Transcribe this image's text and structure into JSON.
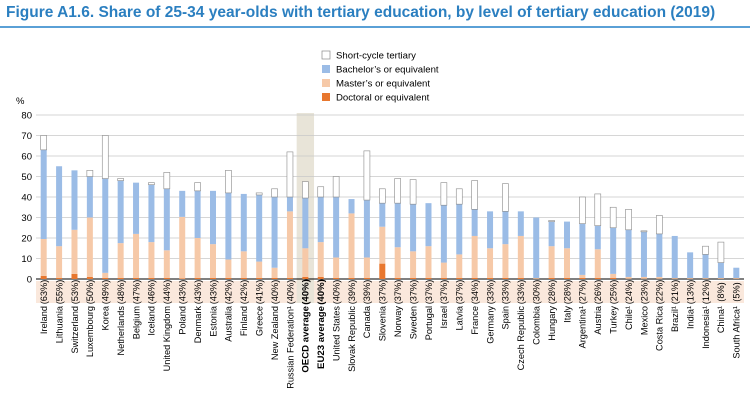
{
  "title": "Figure A1.6. Share of 25-34 year-olds with tertiary education, by level of tertiary education (2019)",
  "chart_data": {
    "type": "bar",
    "stacked": true,
    "ylabel": "%",
    "ylim": [
      0,
      80
    ],
    "yticks": [
      0,
      10,
      20,
      30,
      40,
      50,
      60,
      70,
      80
    ],
    "grid": true,
    "legend_position": "top-right",
    "series_colors": {
      "doctoral": "#e8772e",
      "master": "#f6c9a8",
      "bachelor": "#9bbce6",
      "short": "#ffffff"
    },
    "highlight_color": "#e8e4d8",
    "label_band_color": "#fae8dc",
    "legend": [
      {
        "key": "short",
        "label": "Short-cycle tertiary"
      },
      {
        "key": "bachelor",
        "label": "Bachelor’s or equivalent"
      },
      {
        "key": "master",
        "label": "Master’s or equivalent"
      },
      {
        "key": "doctoral",
        "label": "Doctoral or equivalent"
      }
    ],
    "categories": [
      {
        "name": "Ireland",
        "label": "(63%)",
        "doctoral": 1.5,
        "master": 18,
        "bachelor": 43.5,
        "short": 7
      },
      {
        "name": "Lithuania",
        "label": "(55%)",
        "doctoral": 0.5,
        "master": 15.5,
        "bachelor": 39,
        "short": 0
      },
      {
        "name": "Switzerland",
        "label": "(53%)",
        "doctoral": 2.5,
        "master": 21.5,
        "bachelor": 29,
        "short": 0
      },
      {
        "name": "Luxembourg",
        "label": "(50%)",
        "doctoral": 1,
        "master": 29,
        "bachelor": 20,
        "short": 3
      },
      {
        "name": "Korea",
        "label": "(49%)",
        "doctoral": 0.5,
        "master": 2.5,
        "bachelor": 46,
        "short": 21
      },
      {
        "name": "Netherlands",
        "label": "(48%)",
        "doctoral": 0.5,
        "master": 17,
        "bachelor": 30.5,
        "short": 1
      },
      {
        "name": "Belgium",
        "label": "(47%)",
        "doctoral": 0.5,
        "master": 21.5,
        "bachelor": 25,
        "short": 0
      },
      {
        "name": "Iceland",
        "label": "(46%)",
        "doctoral": 0.5,
        "master": 17.5,
        "bachelor": 28,
        "short": 1
      },
      {
        "name": "United Kingdom",
        "label": "(44%)",
        "doctoral": 0.5,
        "master": 13.5,
        "bachelor": 30,
        "short": 8
      },
      {
        "name": "Poland",
        "label": "(43%)",
        "doctoral": 0.3,
        "master": 30,
        "bachelor": 12.7,
        "short": 0
      },
      {
        "name": "Denmark",
        "label": "(43%)",
        "doctoral": 0.5,
        "master": 19.5,
        "bachelor": 23,
        "short": 4
      },
      {
        "name": "Estonia",
        "label": "(43%)",
        "doctoral": 0.5,
        "master": 16.5,
        "bachelor": 26,
        "short": 0
      },
      {
        "name": "Australia",
        "label": "(42%)",
        "doctoral": 0.5,
        "master": 9,
        "bachelor": 32.5,
        "short": 11
      },
      {
        "name": "Finland",
        "label": "(42%)",
        "doctoral": 0.5,
        "master": 13,
        "bachelor": 28,
        "short": 0
      },
      {
        "name": "Greece",
        "label": "(41%)",
        "doctoral": 0.5,
        "master": 8,
        "bachelor": 32.5,
        "short": 1
      },
      {
        "name": "New Zealand",
        "label": "(40%)",
        "doctoral": 0.5,
        "master": 5,
        "bachelor": 34.5,
        "short": 4
      },
      {
        "name": "Russian Federation¹",
        "label": "(40%)",
        "doctoral": 0.5,
        "master": 32.5,
        "bachelor": 7,
        "short": 22
      },
      {
        "name": "OECD average",
        "label": "(40%)",
        "bold": true,
        "highlight": true,
        "doctoral": 1,
        "master": 14,
        "bachelor": 24.5,
        "short": 8
      },
      {
        "name": "EU23 average",
        "label": "(40%)",
        "bold": true,
        "doctoral": 1,
        "master": 17,
        "bachelor": 22,
        "short": 5
      },
      {
        "name": "United States",
        "label": "(40%)",
        "doctoral": 0.5,
        "master": 10,
        "bachelor": 29.5,
        "short": 10
      },
      {
        "name": "Slovak Republic",
        "label": "(39%)",
        "doctoral": 0.5,
        "master": 31.5,
        "bachelor": 7,
        "short": 0
      },
      {
        "name": "Canada",
        "label": "(39%)",
        "doctoral": 0.5,
        "master": 10,
        "bachelor": 28,
        "short": 24
      },
      {
        "name": "Slovenia",
        "label": "(37%)",
        "doctoral": 7.5,
        "master": 18,
        "bachelor": 11.5,
        "short": 7
      },
      {
        "name": "Norway",
        "label": "(37%)",
        "doctoral": 0.5,
        "master": 15,
        "bachelor": 21.5,
        "short": 12
      },
      {
        "name": "Sweden",
        "label": "(37%)",
        "doctoral": 0.5,
        "master": 13,
        "bachelor": 23,
        "short": 12
      },
      {
        "name": "Portugal",
        "label": "(37%)",
        "doctoral": 0.5,
        "master": 15.5,
        "bachelor": 21,
        "short": 0
      },
      {
        "name": "Israel",
        "label": "(37%)",
        "doctoral": 0.5,
        "master": 7.5,
        "bachelor": 28,
        "short": 11
      },
      {
        "name": "Latvia",
        "label": "(37%)",
        "doctoral": 0.5,
        "master": 11.5,
        "bachelor": 24.5,
        "short": 7.5
      },
      {
        "name": "France",
        "label": "(34%)",
        "doctoral": 0.5,
        "master": 20.5,
        "bachelor": 13,
        "short": 14
      },
      {
        "name": "Germany",
        "label": "(33%)",
        "doctoral": 0.5,
        "master": 14.5,
        "bachelor": 18,
        "short": 0
      },
      {
        "name": "Spain",
        "label": "(33%)",
        "doctoral": 0.5,
        "master": 16.5,
        "bachelor": 16,
        "short": 13.5
      },
      {
        "name": "Czech Republic",
        "label": "(33%)",
        "doctoral": 0.5,
        "master": 20.5,
        "bachelor": 12,
        "short": 0
      },
      {
        "name": "Colombia",
        "label": "(30%)",
        "doctoral": 0.1,
        "master": 0.4,
        "bachelor": 29.5,
        "short": 0
      },
      {
        "name": "Hungary",
        "label": "(28%)",
        "doctoral": 0.5,
        "master": 15.5,
        "bachelor": 12,
        "short": 0.5
      },
      {
        "name": "Italy",
        "label": "(28%)",
        "doctoral": 0.5,
        "master": 14.5,
        "bachelor": 13,
        "short": 0
      },
      {
        "name": "Argentina¹",
        "label": "(27%)",
        "doctoral": 0.5,
        "master": 1.5,
        "bachelor": 25,
        "short": 13
      },
      {
        "name": "Austria",
        "label": "(26%)",
        "doctoral": 0.5,
        "master": 14,
        "bachelor": 11.5,
        "short": 15.5
      },
      {
        "name": "Turkey",
        "label": "(25%)",
        "doctoral": 0.5,
        "master": 2,
        "bachelor": 22.5,
        "short": 10
      },
      {
        "name": "Chile¹",
        "label": "(24%)",
        "doctoral": 0.1,
        "master": 0.9,
        "bachelor": 23,
        "short": 10
      },
      {
        "name": "Mexico",
        "label": "(23%)",
        "doctoral": 0.1,
        "master": 0.9,
        "bachelor": 22,
        "short": 0.5
      },
      {
        "name": "Costa Rica",
        "label": "(22%)",
        "doctoral": 0.1,
        "master": 0.9,
        "bachelor": 21,
        "short": 9
      },
      {
        "name": "Brazil¹",
        "label": "(21%)",
        "doctoral": 0.1,
        "master": 0.4,
        "bachelor": 20.5,
        "short": 0
      },
      {
        "name": "India¹",
        "label": "(13%)",
        "doctoral": 0.1,
        "master": 0.4,
        "bachelor": 12.5,
        "short": 0
      },
      {
        "name": "Indonesia¹",
        "label": "(12%)",
        "doctoral": 0.1,
        "master": 0.4,
        "bachelor": 11.5,
        "short": 4
      },
      {
        "name": "China¹",
        "label": "(8%)",
        "doctoral": 0.1,
        "master": 0.4,
        "bachelor": 7.5,
        "short": 10
      },
      {
        "name": "South Africa¹",
        "label": "(5%)",
        "doctoral": 0.1,
        "master": 0.4,
        "bachelor": 5,
        "short": 0
      }
    ]
  }
}
